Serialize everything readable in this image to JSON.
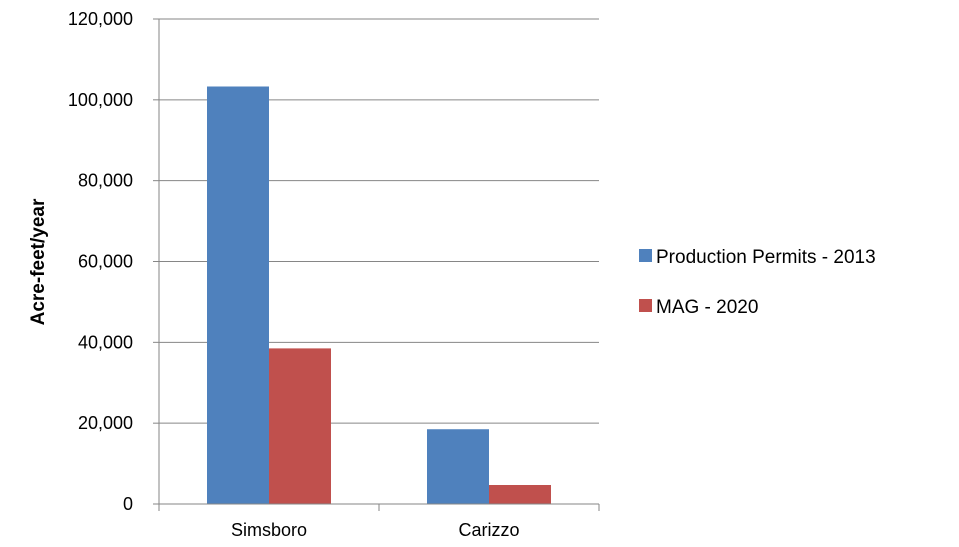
{
  "chart_data": {
    "type": "bar",
    "categories": [
      "Simsboro",
      "Carizzo"
    ],
    "series": [
      {
        "name": "Production Permits - 2013",
        "values": [
          103300,
          18500
        ],
        "color": "#4F81BD"
      },
      {
        "name": "MAG - 2020",
        "values": [
          38500,
          4700
        ],
        "color": "#C0504D"
      }
    ],
    "ylabel": "Acre-feet/year",
    "ylim": [
      0,
      120000
    ],
    "yticks": [
      "0",
      "20,000",
      "40,000",
      "60,000",
      "80,000",
      "100,000",
      "120,000"
    ],
    "ytick_values": [
      0,
      20000,
      40000,
      60000,
      80000,
      100000,
      120000
    ],
    "grid": true,
    "legend": "right"
  }
}
